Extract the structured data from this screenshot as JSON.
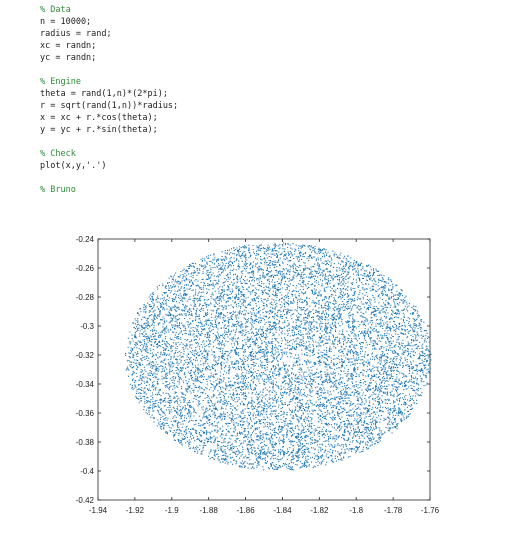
{
  "code_lines": [
    {
      "text": "% Data",
      "kind": "comment"
    },
    {
      "text": "n = 10000;",
      "kind": "code"
    },
    {
      "text": "radius = rand;",
      "kind": "code"
    },
    {
      "text": "xc = randn;",
      "kind": "code"
    },
    {
      "text": "yc = randn;",
      "kind": "code"
    },
    {
      "text": "",
      "kind": "blank"
    },
    {
      "text": "% Engine",
      "kind": "comment"
    },
    {
      "text": "theta = rand(1,n)*(2*pi);",
      "kind": "code"
    },
    {
      "text": "r = sqrt(rand(1,n))*radius;",
      "kind": "code"
    },
    {
      "text": "x = xc + r.*cos(theta);",
      "kind": "code"
    },
    {
      "text": "y = yc + r.*sin(theta);",
      "kind": "code"
    },
    {
      "text": "",
      "kind": "blank"
    },
    {
      "text": "% Check",
      "kind": "comment"
    },
    {
      "text": "plot(x,y,'.')",
      "kind": "code"
    },
    {
      "text": "",
      "kind": "blank"
    },
    {
      "text": "% Bruno",
      "kind": "comment"
    }
  ],
  "chart_data": {
    "type": "scatter",
    "marker_color": "#1f77b4",
    "xlim": [
      -1.94,
      -1.76
    ],
    "ylim": [
      -0.42,
      -0.24
    ],
    "x_ticks": [
      -1.94,
      -1.92,
      -1.9,
      -1.88,
      -1.86,
      -1.84,
      -1.82,
      -1.8,
      -1.78,
      -1.76
    ],
    "y_ticks": [
      -0.24,
      -0.26,
      -0.28,
      -0.3,
      -0.32,
      -0.34,
      -0.36,
      -0.38,
      -0.4,
      -0.42
    ],
    "x_tick_labels": [
      "-1.94",
      "-1.92",
      "-1.9",
      "-1.88",
      "-1.86",
      "-1.84",
      "-1.82",
      "-1.8",
      "-1.78",
      "-1.76"
    ],
    "y_tick_labels": [
      "-0.24",
      "-0.26",
      "-0.28",
      "-0.3",
      "-0.32",
      "-0.34",
      "-0.36",
      "-0.38",
      "-0.4",
      "-0.42"
    ],
    "cloud": {
      "shape": "uniform-disk",
      "count": 10000,
      "center_x": -1.8425,
      "center_y": -0.3212,
      "radius_x": 0.083,
      "radius_y": 0.0785
    },
    "grid": false
  }
}
